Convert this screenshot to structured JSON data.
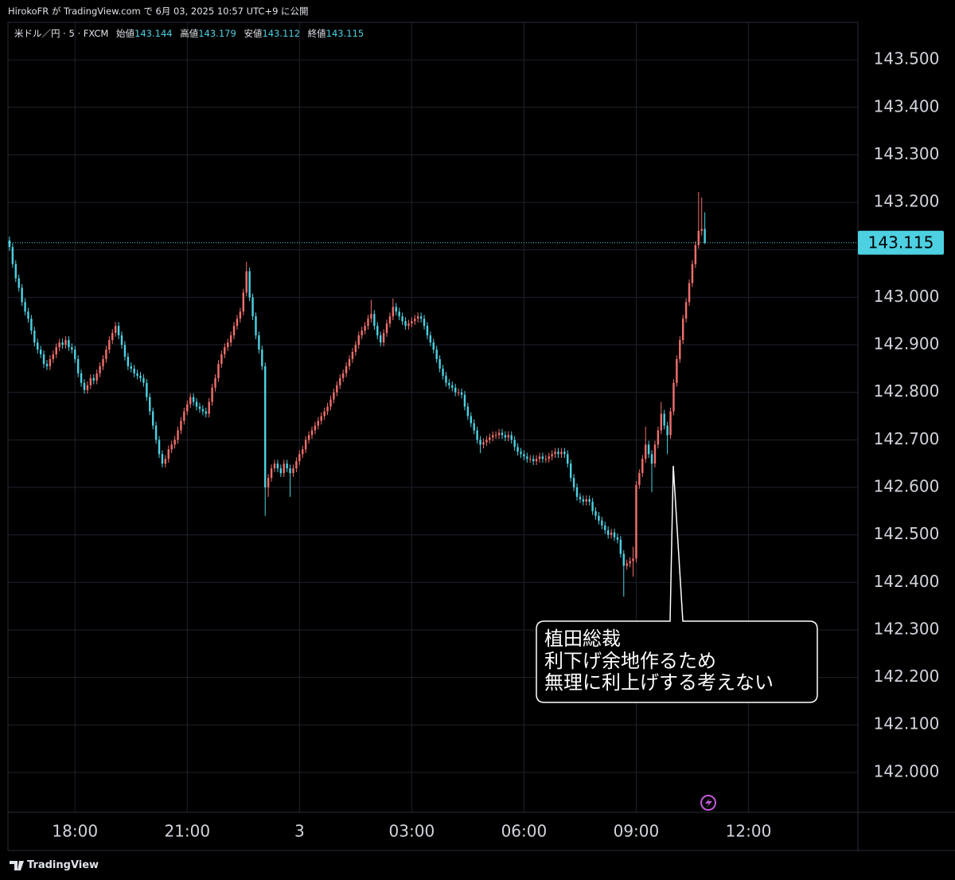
{
  "header": {
    "published": "HirokoFR が TradingView.com で 6月 03, 2025 10:57 UTC+9 に公開",
    "footer": "TradingView"
  },
  "chart_data": {
    "type": "candlestick",
    "symbol": "米ドル／円 · 5 · FXCM",
    "ohlc_labels": [
      "始値",
      "高値",
      "安値",
      "終値"
    ],
    "up_color": "#ef6f6c",
    "down_color": "#4dd0e1",
    "grid": true,
    "ylim": [
      141.916,
      143.579
    ],
    "yticks": [
      {
        "value": 142.0,
        "label": "142.000"
      },
      {
        "value": 142.1,
        "label": "142.100"
      },
      {
        "value": 142.2,
        "label": "142.200"
      },
      {
        "value": 142.3,
        "label": "142.300"
      },
      {
        "value": 142.4,
        "label": "142.400"
      },
      {
        "value": 142.5,
        "label": "142.500"
      },
      {
        "value": 142.6,
        "label": "142.600"
      },
      {
        "value": 142.7,
        "label": "142.700"
      },
      {
        "value": 142.8,
        "label": "142.800"
      },
      {
        "value": 142.9,
        "label": "142.900"
      },
      {
        "value": 143.0,
        "label": "143.000"
      },
      {
        "value": 143.1,
        "label": "143.100"
      },
      {
        "value": 143.2,
        "label": "143.200"
      },
      {
        "value": 143.3,
        "label": "143.300"
      },
      {
        "value": 143.4,
        "label": "143.400"
      },
      {
        "value": 143.5,
        "label": "143.500"
      }
    ],
    "xlim": [
      -0.5,
      272.1
    ],
    "xticks": [
      {
        "value": 21,
        "label": "18:00"
      },
      {
        "value": 57,
        "label": "21:00"
      },
      {
        "value": 93,
        "label": "3"
      },
      {
        "value": 129,
        "label": "03:00"
      },
      {
        "value": 165,
        "label": "06:00"
      },
      {
        "value": 201,
        "label": "09:00"
      },
      {
        "value": 237,
        "label": "12:00"
      }
    ],
    "annotation": {
      "lines": [
        "植田総裁",
        "利下げ余地作るため",
        "無理に利上げする考えない"
      ]
    },
    "open": [
      143.12,
      143.106,
      143.07,
      143.04,
      143.02,
      142.99,
      142.97,
      142.955,
      142.93,
      142.905,
      142.89,
      142.88,
      142.86,
      142.855,
      142.87,
      142.88,
      142.895,
      142.905,
      142.9,
      142.91,
      142.895,
      142.89,
      142.87,
      142.84,
      142.82,
      142.805,
      142.815,
      142.83,
      142.825,
      142.84,
      142.855,
      142.87,
      142.89,
      142.91,
      142.925,
      142.94,
      142.92,
      142.9,
      142.875,
      142.855,
      142.85,
      142.84,
      142.835,
      142.83,
      142.82,
      142.79,
      142.76,
      142.73,
      142.7,
      142.67,
      142.65,
      142.66,
      142.68,
      142.69,
      142.7,
      142.72,
      142.74,
      142.76,
      142.775,
      142.79,
      142.78,
      142.77,
      142.765,
      142.76,
      142.755,
      142.78,
      142.81,
      142.83,
      142.86,
      142.88,
      142.895,
      142.905,
      142.92,
      142.94,
      142.955,
      142.97,
      143.01,
      143.055,
      143,
      142.96,
      142.92,
      142.89,
      142.855,
      142.6,
      142.62,
      142.64,
      142.65,
      142.64,
      142.63,
      142.65,
      142.64,
      142.63,
      142.64,
      142.655,
      142.67,
      142.68,
      142.7,
      142.71,
      142.72,
      142.73,
      142.74,
      142.75,
      142.76,
      142.77,
      142.785,
      142.8,
      142.815,
      142.83,
      142.84,
      142.855,
      142.87,
      142.885,
      142.9,
      142.92,
      142.93,
      142.94,
      142.955,
      142.965,
      142.94,
      142.92,
      142.905,
      142.925,
      142.945,
      142.96,
      142.98,
      142.97,
      142.96,
      142.95,
      142.94,
      142.945,
      142.95,
      142.955,
      142.96,
      142.955,
      142.94,
      142.92,
      142.905,
      142.89,
      142.87,
      142.85,
      142.835,
      142.82,
      142.815,
      142.81,
      142.8,
      142.8,
      142.795,
      142.77,
      142.75,
      142.735,
      142.72,
      142.7,
      142.69,
      142.695,
      142.7,
      142.705,
      142.71,
      142.71,
      142.715,
      142.71,
      142.705,
      142.71,
      142.7,
      142.685,
      142.675,
      142.67,
      142.665,
      142.66,
      142.66,
      142.655,
      142.66,
      142.665,
      142.66,
      142.66,
      142.665,
      142.67,
      142.675,
      142.67,
      142.675,
      142.67,
      142.65,
      142.62,
      142.6,
      142.58,
      142.575,
      142.57,
      142.575,
      142.57,
      142.55,
      142.54,
      142.53,
      142.52,
      142.51,
      142.5,
      142.505,
      142.495,
      142.49,
      142.46,
      142.435,
      142.44,
      142.445,
      142.45,
      142.605,
      142.63,
      142.66,
      142.69,
      142.67,
      142.65,
      142.69,
      142.72,
      142.755,
      142.73,
      142.71,
      142.76,
      142.82,
      142.87,
      142.91,
      142.955,
      142.99,
      143.03,
      143.07,
      143.11,
      143.14,
      143.144
    ],
    "high": [
      143.128,
      143.114,
      143.078,
      143.048,
      143.028,
      142.998,
      142.978,
      142.963,
      142.938,
      142.913,
      142.898,
      142.888,
      142.868,
      142.878,
      142.888,
      142.903,
      142.913,
      142.913,
      142.918,
      142.918,
      142.903,
      142.898,
      142.878,
      142.848,
      142.828,
      142.823,
      142.838,
      142.838,
      142.848,
      142.863,
      142.878,
      142.898,
      142.918,
      142.933,
      142.948,
      142.948,
      142.928,
      142.908,
      142.883,
      142.863,
      142.858,
      142.848,
      142.843,
      142.838,
      142.828,
      142.798,
      142.768,
      142.738,
      142.708,
      142.678,
      142.668,
      142.688,
      142.698,
      142.708,
      142.728,
      142.748,
      142.768,
      142.783,
      142.798,
      142.798,
      142.788,
      142.778,
      142.773,
      142.768,
      142.788,
      142.818,
      142.838,
      142.868,
      142.888,
      142.903,
      142.913,
      142.928,
      142.948,
      142.963,
      142.978,
      143.018,
      143.075,
      143.063,
      143.008,
      142.968,
      142.928,
      142.898,
      142.863,
      142.628,
      142.648,
      142.658,
      142.658,
      142.648,
      142.658,
      142.658,
      142.648,
      142.648,
      142.663,
      142.678,
      142.688,
      142.708,
      142.718,
      142.728,
      142.738,
      142.748,
      142.758,
      142.768,
      142.778,
      142.793,
      142.808,
      142.823,
      142.838,
      142.848,
      142.863,
      142.878,
      142.893,
      142.908,
      142.928,
      142.938,
      142.948,
      142.963,
      142.995,
      142.973,
      142.948,
      142.928,
      142.933,
      142.953,
      142.968,
      142.998,
      142.988,
      142.978,
      142.968,
      142.958,
      142.953,
      142.958,
      142.963,
      142.968,
      142.968,
      142.963,
      142.948,
      142.928,
      142.913,
      142.898,
      142.878,
      142.858,
      142.843,
      142.828,
      142.823,
      142.818,
      142.808,
      142.808,
      142.803,
      142.778,
      142.758,
      142.743,
      142.728,
      142.708,
      142.703,
      142.708,
      142.713,
      142.718,
      142.718,
      142.723,
      142.723,
      142.718,
      142.718,
      142.718,
      142.708,
      142.693,
      142.683,
      142.678,
      142.673,
      142.668,
      142.668,
      142.668,
      142.673,
      142.673,
      142.668,
      142.673,
      142.678,
      142.683,
      142.683,
      142.683,
      142.683,
      142.678,
      142.658,
      142.628,
      142.608,
      142.588,
      142.583,
      142.583,
      142.583,
      142.578,
      142.558,
      142.548,
      142.538,
      142.528,
      142.518,
      142.513,
      142.513,
      142.503,
      142.498,
      142.468,
      142.448,
      142.453,
      142.475,
      142.613,
      142.638,
      142.668,
      142.728,
      142.698,
      142.678,
      142.698,
      142.728,
      142.78,
      142.763,
      142.738,
      142.768,
      142.828,
      142.878,
      142.918,
      142.963,
      142.998,
      143.038,
      143.078,
      143.118,
      143.222,
      143.21,
      143.179
    ],
    "low": [
      143.098,
      143.062,
      143.032,
      143.012,
      142.982,
      142.962,
      142.947,
      142.922,
      142.897,
      142.882,
      142.872,
      142.852,
      142.847,
      142.847,
      142.862,
      142.872,
      142.887,
      142.892,
      142.892,
      142.887,
      142.882,
      142.862,
      142.832,
      142.812,
      142.797,
      142.797,
      142.807,
      142.817,
      142.817,
      142.832,
      142.847,
      142.862,
      142.882,
      142.902,
      142.917,
      142.912,
      142.892,
      142.867,
      142.847,
      142.842,
      142.832,
      142.827,
      142.822,
      142.812,
      142.782,
      142.752,
      142.722,
      142.692,
      142.662,
      142.642,
      142.642,
      142.652,
      142.672,
      142.682,
      142.692,
      142.712,
      142.732,
      142.752,
      142.767,
      142.772,
      142.762,
      142.757,
      142.752,
      142.747,
      142.747,
      142.772,
      142.802,
      142.822,
      142.852,
      142.872,
      142.887,
      142.897,
      142.912,
      142.932,
      142.947,
      142.962,
      143.002,
      142.992,
      142.952,
      142.912,
      142.882,
      142.847,
      142.54,
      142.58,
      142.612,
      142.632,
      142.632,
      142.622,
      142.622,
      142.632,
      142.58,
      142.622,
      142.632,
      142.647,
      142.662,
      142.672,
      142.692,
      142.702,
      142.712,
      142.722,
      142.732,
      142.742,
      142.752,
      142.762,
      142.777,
      142.792,
      142.807,
      142.822,
      142.832,
      142.847,
      142.862,
      142.877,
      142.892,
      142.912,
      142.922,
      142.932,
      142.947,
      142.932,
      142.912,
      142.897,
      142.897,
      142.917,
      142.937,
      142.952,
      142.962,
      142.952,
      142.942,
      142.932,
      142.932,
      142.937,
      142.942,
      142.947,
      142.947,
      142.932,
      142.912,
      142.897,
      142.882,
      142.862,
      142.842,
      142.827,
      142.812,
      142.807,
      142.802,
      142.792,
      142.792,
      142.787,
      142.762,
      142.742,
      142.727,
      142.712,
      142.692,
      142.672,
      142.682,
      142.687,
      142.692,
      142.697,
      142.702,
      142.702,
      142.702,
      142.697,
      142.697,
      142.692,
      142.677,
      142.667,
      142.662,
      142.657,
      142.652,
      142.652,
      142.647,
      142.647,
      142.652,
      142.652,
      142.652,
      142.652,
      142.657,
      142.662,
      142.662,
      142.662,
      142.662,
      142.642,
      142.612,
      142.592,
      142.572,
      142.567,
      142.562,
      142.562,
      142.562,
      142.542,
      142.532,
      142.522,
      142.512,
      142.502,
      142.492,
      142.492,
      142.487,
      142.482,
      142.452,
      142.37,
      142.427,
      142.432,
      142.412,
      142.442,
      142.597,
      142.622,
      142.652,
      142.662,
      142.59,
      142.642,
      142.682,
      142.712,
      142.722,
      142.67,
      142.702,
      142.752,
      142.812,
      142.862,
      142.902,
      142.947,
      142.982,
      143.022,
      143.062,
      143.102,
      143.13,
      143.112
    ],
    "close": [
      143.106,
      143.07,
      143.04,
      143.02,
      142.99,
      142.97,
      142.955,
      142.93,
      142.905,
      142.89,
      142.88,
      142.86,
      142.855,
      142.87,
      142.88,
      142.895,
      142.905,
      142.9,
      142.91,
      142.895,
      142.89,
      142.87,
      142.84,
      142.82,
      142.805,
      142.815,
      142.83,
      142.825,
      142.84,
      142.855,
      142.87,
      142.89,
      142.91,
      142.925,
      142.94,
      142.92,
      142.9,
      142.875,
      142.855,
      142.85,
      142.84,
      142.835,
      142.83,
      142.82,
      142.79,
      142.76,
      142.73,
      142.7,
      142.67,
      142.65,
      142.66,
      142.68,
      142.69,
      142.7,
      142.72,
      142.74,
      142.76,
      142.775,
      142.79,
      142.78,
      142.77,
      142.765,
      142.76,
      142.755,
      142.78,
      142.81,
      142.83,
      142.86,
      142.88,
      142.895,
      142.905,
      142.92,
      142.94,
      142.955,
      142.97,
      143.01,
      143.055,
      143,
      142.96,
      142.92,
      142.89,
      142.855,
      142.6,
      142.62,
      142.64,
      142.65,
      142.64,
      142.63,
      142.65,
      142.64,
      142.63,
      142.64,
      142.655,
      142.67,
      142.68,
      142.7,
      142.71,
      142.72,
      142.73,
      142.74,
      142.75,
      142.76,
      142.77,
      142.785,
      142.8,
      142.815,
      142.83,
      142.84,
      142.855,
      142.87,
      142.885,
      142.9,
      142.92,
      142.93,
      142.94,
      142.955,
      142.965,
      142.94,
      142.92,
      142.905,
      142.925,
      142.945,
      142.96,
      142.98,
      142.97,
      142.96,
      142.95,
      142.94,
      142.945,
      142.95,
      142.955,
      142.96,
      142.955,
      142.94,
      142.92,
      142.905,
      142.89,
      142.87,
      142.85,
      142.835,
      142.82,
      142.815,
      142.81,
      142.8,
      142.8,
      142.795,
      142.77,
      142.75,
      142.735,
      142.72,
      142.7,
      142.69,
      142.695,
      142.7,
      142.705,
      142.71,
      142.71,
      142.715,
      142.71,
      142.705,
      142.71,
      142.7,
      142.685,
      142.675,
      142.67,
      142.665,
      142.66,
      142.66,
      142.655,
      142.66,
      142.665,
      142.66,
      142.66,
      142.665,
      142.67,
      142.675,
      142.67,
      142.675,
      142.67,
      142.65,
      142.62,
      142.6,
      142.58,
      142.575,
      142.57,
      142.575,
      142.57,
      142.55,
      142.54,
      142.53,
      142.52,
      142.51,
      142.5,
      142.505,
      142.495,
      142.49,
      142.46,
      142.435,
      142.44,
      142.445,
      142.45,
      142.605,
      142.63,
      142.66,
      142.69,
      142.67,
      142.65,
      142.69,
      142.72,
      142.755,
      142.73,
      142.71,
      142.76,
      142.82,
      142.87,
      142.91,
      142.955,
      142.99,
      143.03,
      143.07,
      143.11,
      143.14,
      143.144,
      143.115
    ]
  }
}
